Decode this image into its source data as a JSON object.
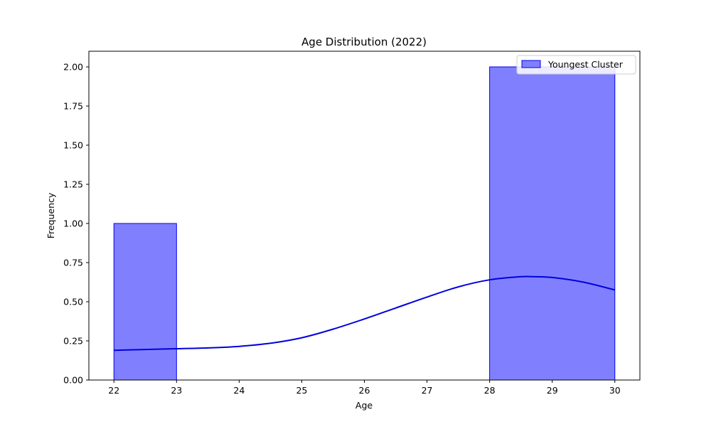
{
  "chart_data": {
    "type": "bar",
    "title": "Age Distribution (2022)",
    "xlabel": "Age",
    "ylabel": "Frequency",
    "xlim": [
      21.6,
      30.4
    ],
    "ylim": [
      0,
      2.1
    ],
    "x_ticks": [
      22,
      23,
      24,
      25,
      26,
      27,
      28,
      29,
      30
    ],
    "y_ticks": [
      0,
      0.25,
      0.5,
      0.75,
      1.0,
      1.25,
      1.5,
      1.75,
      2.0
    ],
    "y_tick_labels": [
      "0.00",
      "0.25",
      "0.50",
      "0.75",
      "1.00",
      "1.25",
      "1.50",
      "1.75",
      "2.00"
    ],
    "bins": [
      {
        "x_start": 22,
        "x_end": 23,
        "count": 1
      },
      {
        "x_start": 23,
        "x_end": 24,
        "count": 0
      },
      {
        "x_start": 24,
        "x_end": 25,
        "count": 0
      },
      {
        "x_start": 25,
        "x_end": 26,
        "count": 0
      },
      {
        "x_start": 26,
        "x_end": 27,
        "count": 0
      },
      {
        "x_start": 27,
        "x_end": 28,
        "count": 0
      },
      {
        "x_start": 28,
        "x_end": 30,
        "count": 2
      }
    ],
    "kde_curve": {
      "x": [
        22,
        22.5,
        23,
        23.5,
        24,
        24.5,
        25,
        25.5,
        26,
        26.5,
        27,
        27.5,
        28,
        28.5,
        28.7,
        29,
        29.5,
        30
      ],
      "y": [
        0.19,
        0.195,
        0.2,
        0.205,
        0.215,
        0.235,
        0.27,
        0.325,
        0.39,
        0.46,
        0.53,
        0.595,
        0.64,
        0.66,
        0.66,
        0.655,
        0.625,
        0.575
      ]
    },
    "series": [
      {
        "name": "Youngest Cluster",
        "fill_color": "#8080ff",
        "edge_color": "#0000ee",
        "line_color": "#0000dd"
      }
    ],
    "legend_position": "top-right",
    "grid": false
  }
}
